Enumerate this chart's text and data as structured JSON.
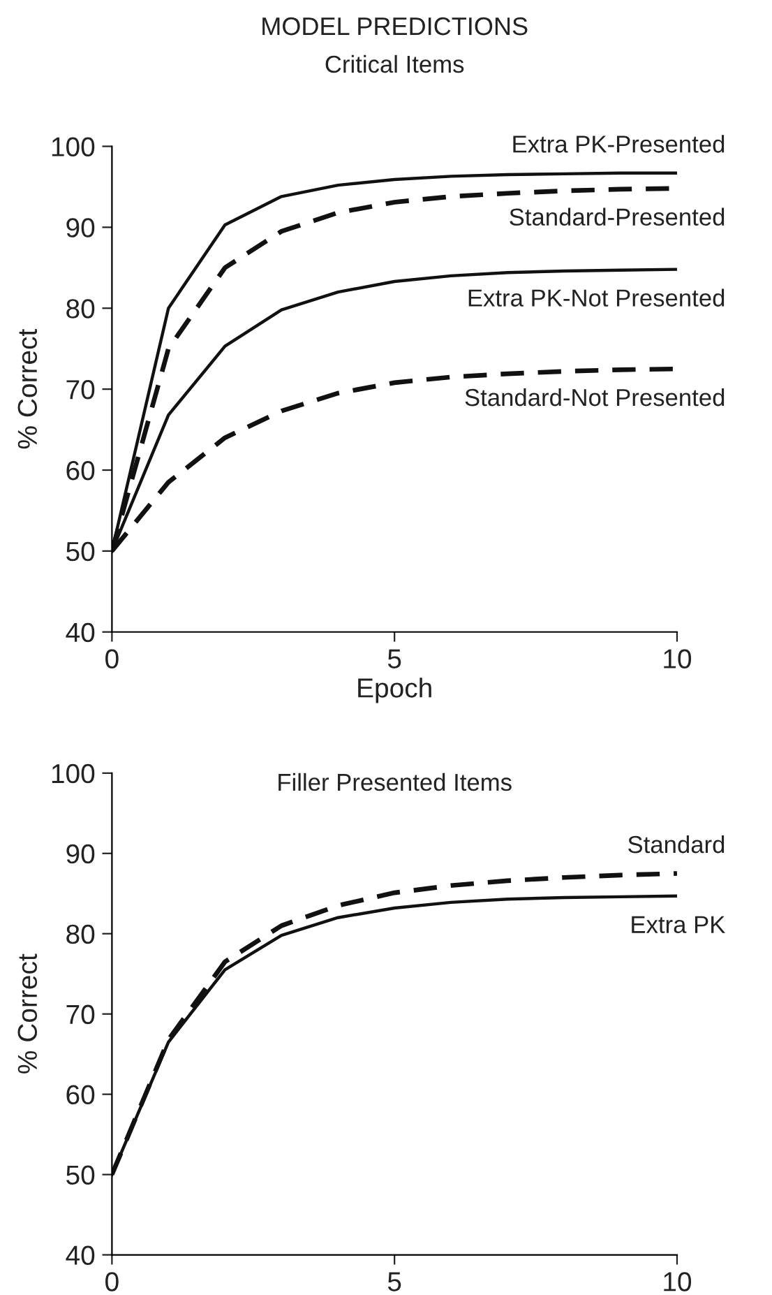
{
  "chart_data": [
    {
      "type": "line",
      "title": "MODEL PREDICTIONS",
      "subtitle": "Critical Items",
      "xlabel": "Epoch",
      "ylabel": "% Correct",
      "x": [
        0,
        1,
        2,
        3,
        4,
        5,
        6,
        7,
        8,
        9,
        10
      ],
      "xlim": [
        0,
        10
      ],
      "xticks": [
        0,
        5,
        10
      ],
      "ylim": [
        40,
        100
      ],
      "yticks": [
        40,
        50,
        60,
        70,
        80,
        90,
        100
      ],
      "grid": false,
      "legend": false,
      "marker": "none",
      "series": [
        {
          "name": "Extra PK-Presented",
          "color": "#111111",
          "line_style": "solid",
          "values": [
            50,
            80,
            90.3,
            93.8,
            95.2,
            95.9,
            96.3,
            96.5,
            96.6,
            96.7,
            96.7
          ]
        },
        {
          "name": "Standard-Presented",
          "color": "#111111",
          "line_style": "dashed",
          "values": [
            50,
            75,
            85,
            89.5,
            91.8,
            93.1,
            93.8,
            94.2,
            94.5,
            94.7,
            94.8
          ]
        },
        {
          "name": "Extra PK-Not Presented",
          "color": "#111111",
          "line_style": "solid",
          "values": [
            50,
            66.8,
            75.3,
            79.8,
            82,
            83.3,
            84,
            84.4,
            84.6,
            84.7,
            84.8
          ]
        },
        {
          "name": "Standard-Not Presented",
          "color": "#111111",
          "line_style": "dashed",
          "values": [
            50,
            58.5,
            64,
            67.3,
            69.5,
            70.8,
            71.5,
            71.9,
            72.2,
            72.4,
            72.5
          ]
        }
      ]
    },
    {
      "type": "line",
      "title": "Filler Presented Items",
      "ylabel": "% Correct",
      "x": [
        0,
        1,
        2,
        3,
        4,
        5,
        6,
        7,
        8,
        9,
        10
      ],
      "xlim": [
        0,
        10
      ],
      "xticks": [
        0,
        5,
        10
      ],
      "ylim": [
        40,
        100
      ],
      "yticks": [
        40,
        50,
        60,
        70,
        80,
        90,
        100
      ],
      "grid": false,
      "legend": false,
      "marker": "none",
      "series": [
        {
          "name": "Standard",
          "color": "#111111",
          "line_style": "dashed",
          "values": [
            50,
            66.8,
            76.5,
            81,
            83.5,
            85.1,
            86,
            86.6,
            87,
            87.3,
            87.5
          ]
        },
        {
          "name": "Extra PK",
          "color": "#111111",
          "line_style": "solid",
          "values": [
            50,
            66.5,
            75.5,
            79.8,
            82,
            83.2,
            83.9,
            84.3,
            84.5,
            84.6,
            84.7
          ]
        }
      ]
    }
  ]
}
